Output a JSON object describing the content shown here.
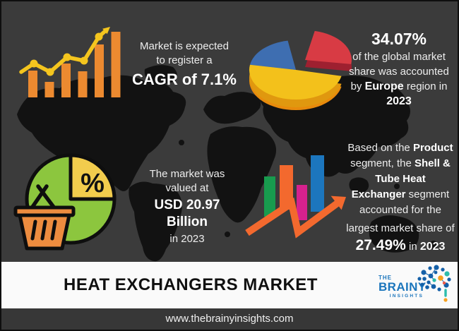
{
  "title_bar": {
    "title": "HEAT EXCHANGERS MARKET"
  },
  "footer": {
    "website": "www.thebrainyinsights.com"
  },
  "logo": {
    "the": "THE",
    "brainy": "BRAINY",
    "insights": "INSIGHTS"
  },
  "icons": {
    "percent_symbol": "%"
  },
  "stats": {
    "cagr": {
      "line1": "Market is expected",
      "line2": "to register a",
      "stat": "CAGR of 7.1%"
    },
    "europe": {
      "stat": "34.07%",
      "lines": [
        [
          {
            "t": "of the global market"
          }
        ],
        [
          {
            "t": "share was accounted"
          }
        ],
        [
          {
            "t": "by "
          },
          {
            "t": "Europe",
            "b": true
          },
          {
            "t": " region in"
          }
        ],
        [
          {
            "t": "2023",
            "b": true
          }
        ]
      ]
    },
    "value": {
      "line1": "The market was",
      "line2": "valued at",
      "stat": "USD 20.97 Billion",
      "line3": "in 2023"
    },
    "product": {
      "lines": [
        [
          {
            "t": "Based on the "
          },
          {
            "t": "Product",
            "b": true
          }
        ],
        [
          {
            "t": "segment, the "
          },
          {
            "t": "Shell &",
            "b": true
          }
        ],
        [
          {
            "t": "Tube Heat",
            "b": true
          }
        ],
        [
          {
            "t": "Exchanger",
            "b": true
          },
          {
            "t": " segment"
          }
        ],
        [
          {
            "t": "accounted for the"
          }
        ],
        [
          {
            "t": "largest market share of"
          }
        ],
        [
          {
            "t": "27.49%",
            "b": true,
            "c": "stat-lg"
          },
          {
            "t": " in "
          },
          {
            "t": "2023",
            "b": true,
            "c": "stat-md"
          }
        ]
      ]
    }
  },
  "key_stats": {
    "cagr": "7.1%",
    "market_value_2023": "USD 20.97 Billion",
    "europe_share_2023": "34.07%",
    "shell_tube_heat_exchanger_share_2023": "27.49%"
  },
  "chart_data": [
    {
      "type": "bar",
      "name": "growth-trend-icon",
      "title": "Market is expected to register a CAGR of 7.1%",
      "values": [
        38,
        22,
        48,
        37,
        75,
        93
      ],
      "line_overlay_y": [
        67,
        55,
        67,
        46,
        51,
        17
      ],
      "bar_color": "#EC8A30",
      "line_color": "#F4C51E"
    },
    {
      "type": "pie",
      "name": "regional-share-pie",
      "title": "34.07% of the global market share was accounted by Europe region in 2023",
      "slices": [
        {
          "label": "Europe (exploded slice)",
          "value": 34.07,
          "color": "#D83B44"
        },
        {
          "label": "other region",
          "value": 20,
          "color": "#3E6EB1"
        },
        {
          "label": "rest of world",
          "value": 45.93,
          "color": "#F3C11B"
        }
      ]
    },
    {
      "type": "pie",
      "name": "market-value-percent-icon",
      "title": "The market was valued at USD 20.97 Billion in 2023",
      "slices": [
        {
          "label": "circle",
          "value": 75,
          "color": "#8CC63E"
        },
        {
          "label": "percent wedge",
          "value": 25,
          "color": "#F2CC4D"
        }
      ]
    },
    {
      "type": "bar",
      "name": "segment-share-bars-icon",
      "title": "Shell & Tube Heat Exchanger segment largest share 27.49% in 2023",
      "values": [
        57,
        63,
        50,
        80
      ],
      "colors": [
        "#189B4E",
        "#F3692E",
        "#D6218E",
        "#1C76BE"
      ],
      "arrow_color": "#F3692E"
    }
  ],
  "colors": {
    "background": "#3B3B3B",
    "map_silhouette": "#121212",
    "accent_orange": "#EC8A30",
    "accent_yellow": "#F4C51E",
    "pie_red": "#D83B44",
    "pie_blue": "#3E6EB1",
    "pie_yellow": "#F3C11B",
    "circle_green": "#8CC63E",
    "basket_orange": "#ED8C3F",
    "bar_green": "#189B4E",
    "bar_orange": "#F3692E",
    "bar_magenta": "#D6218E",
    "bar_blue": "#1C76BE",
    "logo_blue": "#1B75BC",
    "logo_teal": "#2CBCAC",
    "logo_orange": "#F7A11E",
    "title_bar_bg": "#FAFAFA",
    "url_bar_bg": "#373737"
  }
}
